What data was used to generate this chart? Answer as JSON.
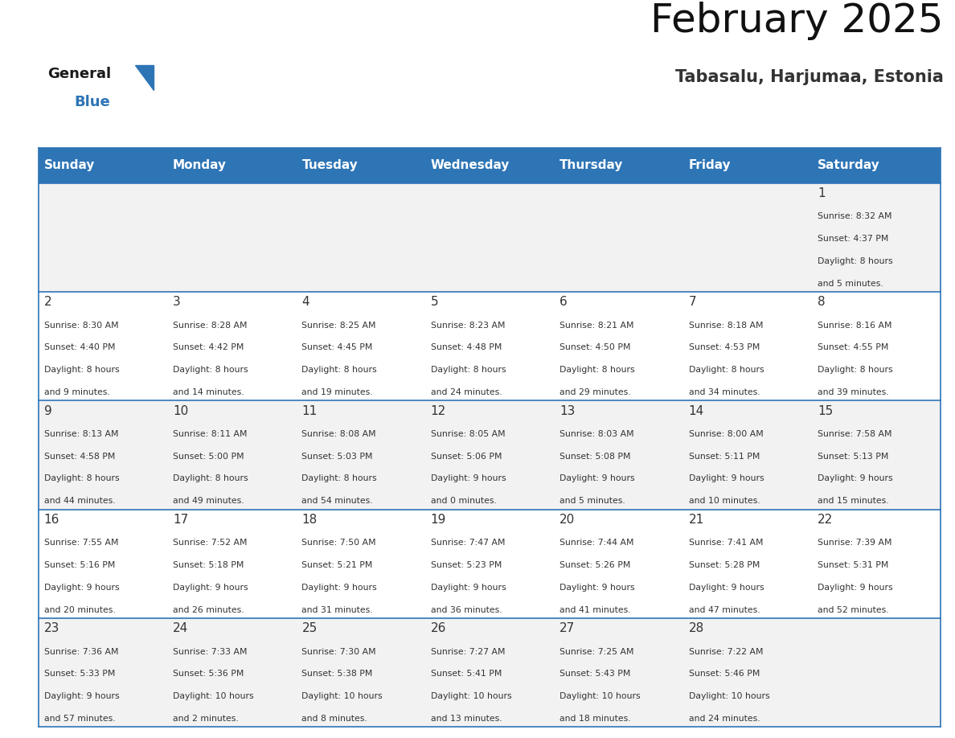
{
  "title": "February 2025",
  "subtitle": "Tabasalu, Harjumaa, Estonia",
  "header_bg": "#2E75B6",
  "header_text_color": "#FFFFFF",
  "days_of_week": [
    "Sunday",
    "Monday",
    "Tuesday",
    "Wednesday",
    "Thursday",
    "Friday",
    "Saturday"
  ],
  "cell_bg_odd": "#F2F2F2",
  "cell_bg_even": "#FFFFFF",
  "border_color": "#2E75B6",
  "day_number_color": "#333333",
  "day_info_color": "#333333",
  "logo_general_color": "#1a1a1a",
  "logo_blue_color": "#2E75B6",
  "calendar_data": [
    [
      null,
      null,
      null,
      null,
      null,
      null,
      {
        "day": 1,
        "sunrise": "8:32 AM",
        "sunset": "4:37 PM",
        "daylight_hours": 8,
        "daylight_minutes": 5
      }
    ],
    [
      {
        "day": 2,
        "sunrise": "8:30 AM",
        "sunset": "4:40 PM",
        "daylight_hours": 8,
        "daylight_minutes": 9
      },
      {
        "day": 3,
        "sunrise": "8:28 AM",
        "sunset": "4:42 PM",
        "daylight_hours": 8,
        "daylight_minutes": 14
      },
      {
        "day": 4,
        "sunrise": "8:25 AM",
        "sunset": "4:45 PM",
        "daylight_hours": 8,
        "daylight_minutes": 19
      },
      {
        "day": 5,
        "sunrise": "8:23 AM",
        "sunset": "4:48 PM",
        "daylight_hours": 8,
        "daylight_minutes": 24
      },
      {
        "day": 6,
        "sunrise": "8:21 AM",
        "sunset": "4:50 PM",
        "daylight_hours": 8,
        "daylight_minutes": 29
      },
      {
        "day": 7,
        "sunrise": "8:18 AM",
        "sunset": "4:53 PM",
        "daylight_hours": 8,
        "daylight_minutes": 34
      },
      {
        "day": 8,
        "sunrise": "8:16 AM",
        "sunset": "4:55 PM",
        "daylight_hours": 8,
        "daylight_minutes": 39
      }
    ],
    [
      {
        "day": 9,
        "sunrise": "8:13 AM",
        "sunset": "4:58 PM",
        "daylight_hours": 8,
        "daylight_minutes": 44
      },
      {
        "day": 10,
        "sunrise": "8:11 AM",
        "sunset": "5:00 PM",
        "daylight_hours": 8,
        "daylight_minutes": 49
      },
      {
        "day": 11,
        "sunrise": "8:08 AM",
        "sunset": "5:03 PM",
        "daylight_hours": 8,
        "daylight_minutes": 54
      },
      {
        "day": 12,
        "sunrise": "8:05 AM",
        "sunset": "5:06 PM",
        "daylight_hours": 9,
        "daylight_minutes": 0
      },
      {
        "day": 13,
        "sunrise": "8:03 AM",
        "sunset": "5:08 PM",
        "daylight_hours": 9,
        "daylight_minutes": 5
      },
      {
        "day": 14,
        "sunrise": "8:00 AM",
        "sunset": "5:11 PM",
        "daylight_hours": 9,
        "daylight_minutes": 10
      },
      {
        "day": 15,
        "sunrise": "7:58 AM",
        "sunset": "5:13 PM",
        "daylight_hours": 9,
        "daylight_minutes": 15
      }
    ],
    [
      {
        "day": 16,
        "sunrise": "7:55 AM",
        "sunset": "5:16 PM",
        "daylight_hours": 9,
        "daylight_minutes": 20
      },
      {
        "day": 17,
        "sunrise": "7:52 AM",
        "sunset": "5:18 PM",
        "daylight_hours": 9,
        "daylight_minutes": 26
      },
      {
        "day": 18,
        "sunrise": "7:50 AM",
        "sunset": "5:21 PM",
        "daylight_hours": 9,
        "daylight_minutes": 31
      },
      {
        "day": 19,
        "sunrise": "7:47 AM",
        "sunset": "5:23 PM",
        "daylight_hours": 9,
        "daylight_minutes": 36
      },
      {
        "day": 20,
        "sunrise": "7:44 AM",
        "sunset": "5:26 PM",
        "daylight_hours": 9,
        "daylight_minutes": 41
      },
      {
        "day": 21,
        "sunrise": "7:41 AM",
        "sunset": "5:28 PM",
        "daylight_hours": 9,
        "daylight_minutes": 47
      },
      {
        "day": 22,
        "sunrise": "7:39 AM",
        "sunset": "5:31 PM",
        "daylight_hours": 9,
        "daylight_minutes": 52
      }
    ],
    [
      {
        "day": 23,
        "sunrise": "7:36 AM",
        "sunset": "5:33 PM",
        "daylight_hours": 9,
        "daylight_minutes": 57
      },
      {
        "day": 24,
        "sunrise": "7:33 AM",
        "sunset": "5:36 PM",
        "daylight_hours": 10,
        "daylight_minutes": 2
      },
      {
        "day": 25,
        "sunrise": "7:30 AM",
        "sunset": "5:38 PM",
        "daylight_hours": 10,
        "daylight_minutes": 8
      },
      {
        "day": 26,
        "sunrise": "7:27 AM",
        "sunset": "5:41 PM",
        "daylight_hours": 10,
        "daylight_minutes": 13
      },
      {
        "day": 27,
        "sunrise": "7:25 AM",
        "sunset": "5:43 PM",
        "daylight_hours": 10,
        "daylight_minutes": 18
      },
      {
        "day": 28,
        "sunrise": "7:22 AM",
        "sunset": "5:46 PM",
        "daylight_hours": 10,
        "daylight_minutes": 24
      },
      null
    ]
  ]
}
